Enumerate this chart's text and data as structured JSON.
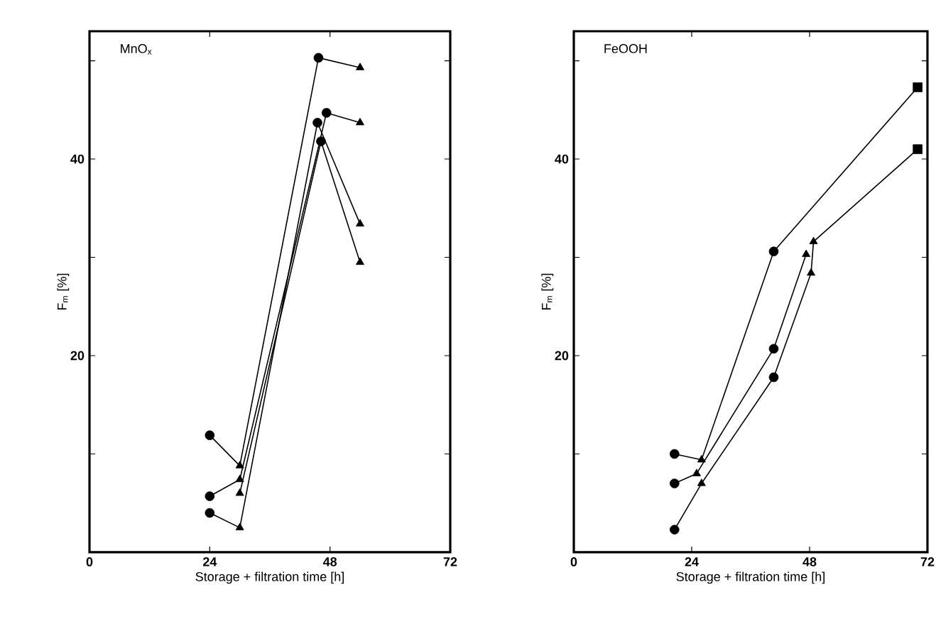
{
  "chart_data": [
    {
      "type": "line",
      "title": "MnO$_{x}$",
      "xlabel": "Storage + filtration time [h]",
      "ylabel": "F$_{m}$ [%]",
      "xlim": [
        0,
        72
      ],
      "ylim": [
        0,
        53
      ],
      "xticks": [
        0,
        24,
        48,
        72
      ],
      "yticks": [
        {
          "value": 10,
          "label": null
        },
        20,
        {
          "value": 30,
          "label": null
        },
        40,
        {
          "value": 50,
          "label": null
        }
      ],
      "line_style": "solid",
      "series": [
        {
          "color": "#000000",
          "marker": "none",
          "x": [
            24,
            30,
            45.7,
            54
          ],
          "values": [
            11.9,
            8.8,
            50.3,
            49.3
          ]
        },
        {
          "color": "#000000",
          "marker": "none",
          "x": [
            24,
            30,
            47.3,
            54
          ],
          "values": [
            5.7,
            7.4,
            44.7,
            43.7
          ]
        },
        {
          "color": "#000000",
          "marker": "none",
          "x": [
            24,
            30,
            45.5,
            54
          ],
          "values": [
            4.0,
            2.5,
            43.7,
            33.4
          ]
        },
        {
          "color": "#000000",
          "marker": "none",
          "x": [
            30,
            46.2,
            54
          ],
          "values": [
            6.0,
            41.8,
            29.5
          ]
        },
        {
          "type": "scatter",
          "color": "#000000",
          "marker": "circle",
          "x": [
            24,
            24,
            24,
            45.7,
            47.3,
            45.5,
            46.2
          ],
          "values": [
            11.9,
            5.7,
            4.0,
            50.3,
            44.7,
            43.7,
            41.8
          ]
        },
        {
          "type": "scatter",
          "color": "#000000",
          "marker": "triangle",
          "x": [
            30,
            30,
            30,
            30,
            54,
            54,
            54,
            54
          ],
          "values": [
            8.8,
            7.4,
            2.5,
            6.0,
            49.3,
            43.7,
            33.4,
            29.5
          ]
        }
      ]
    },
    {
      "type": "line",
      "title": "FeOOH",
      "xlabel": "Storage + filtration time [h]",
      "ylabel": "F$_{m}$ [%]",
      "xlim": [
        0,
        72
      ],
      "ylim": [
        0,
        53
      ],
      "xticks": [
        0,
        24,
        48,
        72
      ],
      "yticks": [
        {
          "value": 10,
          "label": null
        },
        20,
        {
          "value": 30,
          "label": null
        },
        40,
        {
          "value": 50,
          "label": null
        }
      ],
      "line_style": "solid",
      "series": [
        {
          "color": "#000000",
          "marker": "none",
          "x": [
            20.5,
            26,
            40.7,
            70
          ],
          "values": [
            10.0,
            9.4,
            30.6,
            47.3
          ]
        },
        {
          "color": "#000000",
          "marker": "none",
          "x": [
            20.5,
            25,
            40.7,
            47.3
          ],
          "values": [
            7.0,
            8.0,
            20.7,
            30.3
          ]
        },
        {
          "color": "#000000",
          "marker": "none",
          "x": [
            20.5,
            26,
            40.7,
            48.3,
            48.8,
            70
          ],
          "values": [
            2.3,
            7.0,
            17.8,
            28.4,
            31.6,
            41.0
          ]
        },
        {
          "type": "scatter",
          "color": "#000000",
          "marker": "circle",
          "x": [
            20.5,
            20.5,
            20.5,
            40.7,
            40.7,
            40.7
          ],
          "values": [
            10.0,
            7.0,
            2.3,
            30.6,
            20.7,
            17.8
          ]
        },
        {
          "type": "scatter",
          "color": "#000000",
          "marker": "triangle",
          "x": [
            26,
            25,
            26,
            47.3,
            48.3,
            48.8
          ],
          "values": [
            9.4,
            8.0,
            7.0,
            30.3,
            28.4,
            31.6
          ]
        },
        {
          "type": "scatter",
          "color": "#000000",
          "marker": "square",
          "x": [
            70,
            70
          ],
          "values": [
            47.3,
            41.0
          ]
        }
      ]
    }
  ]
}
